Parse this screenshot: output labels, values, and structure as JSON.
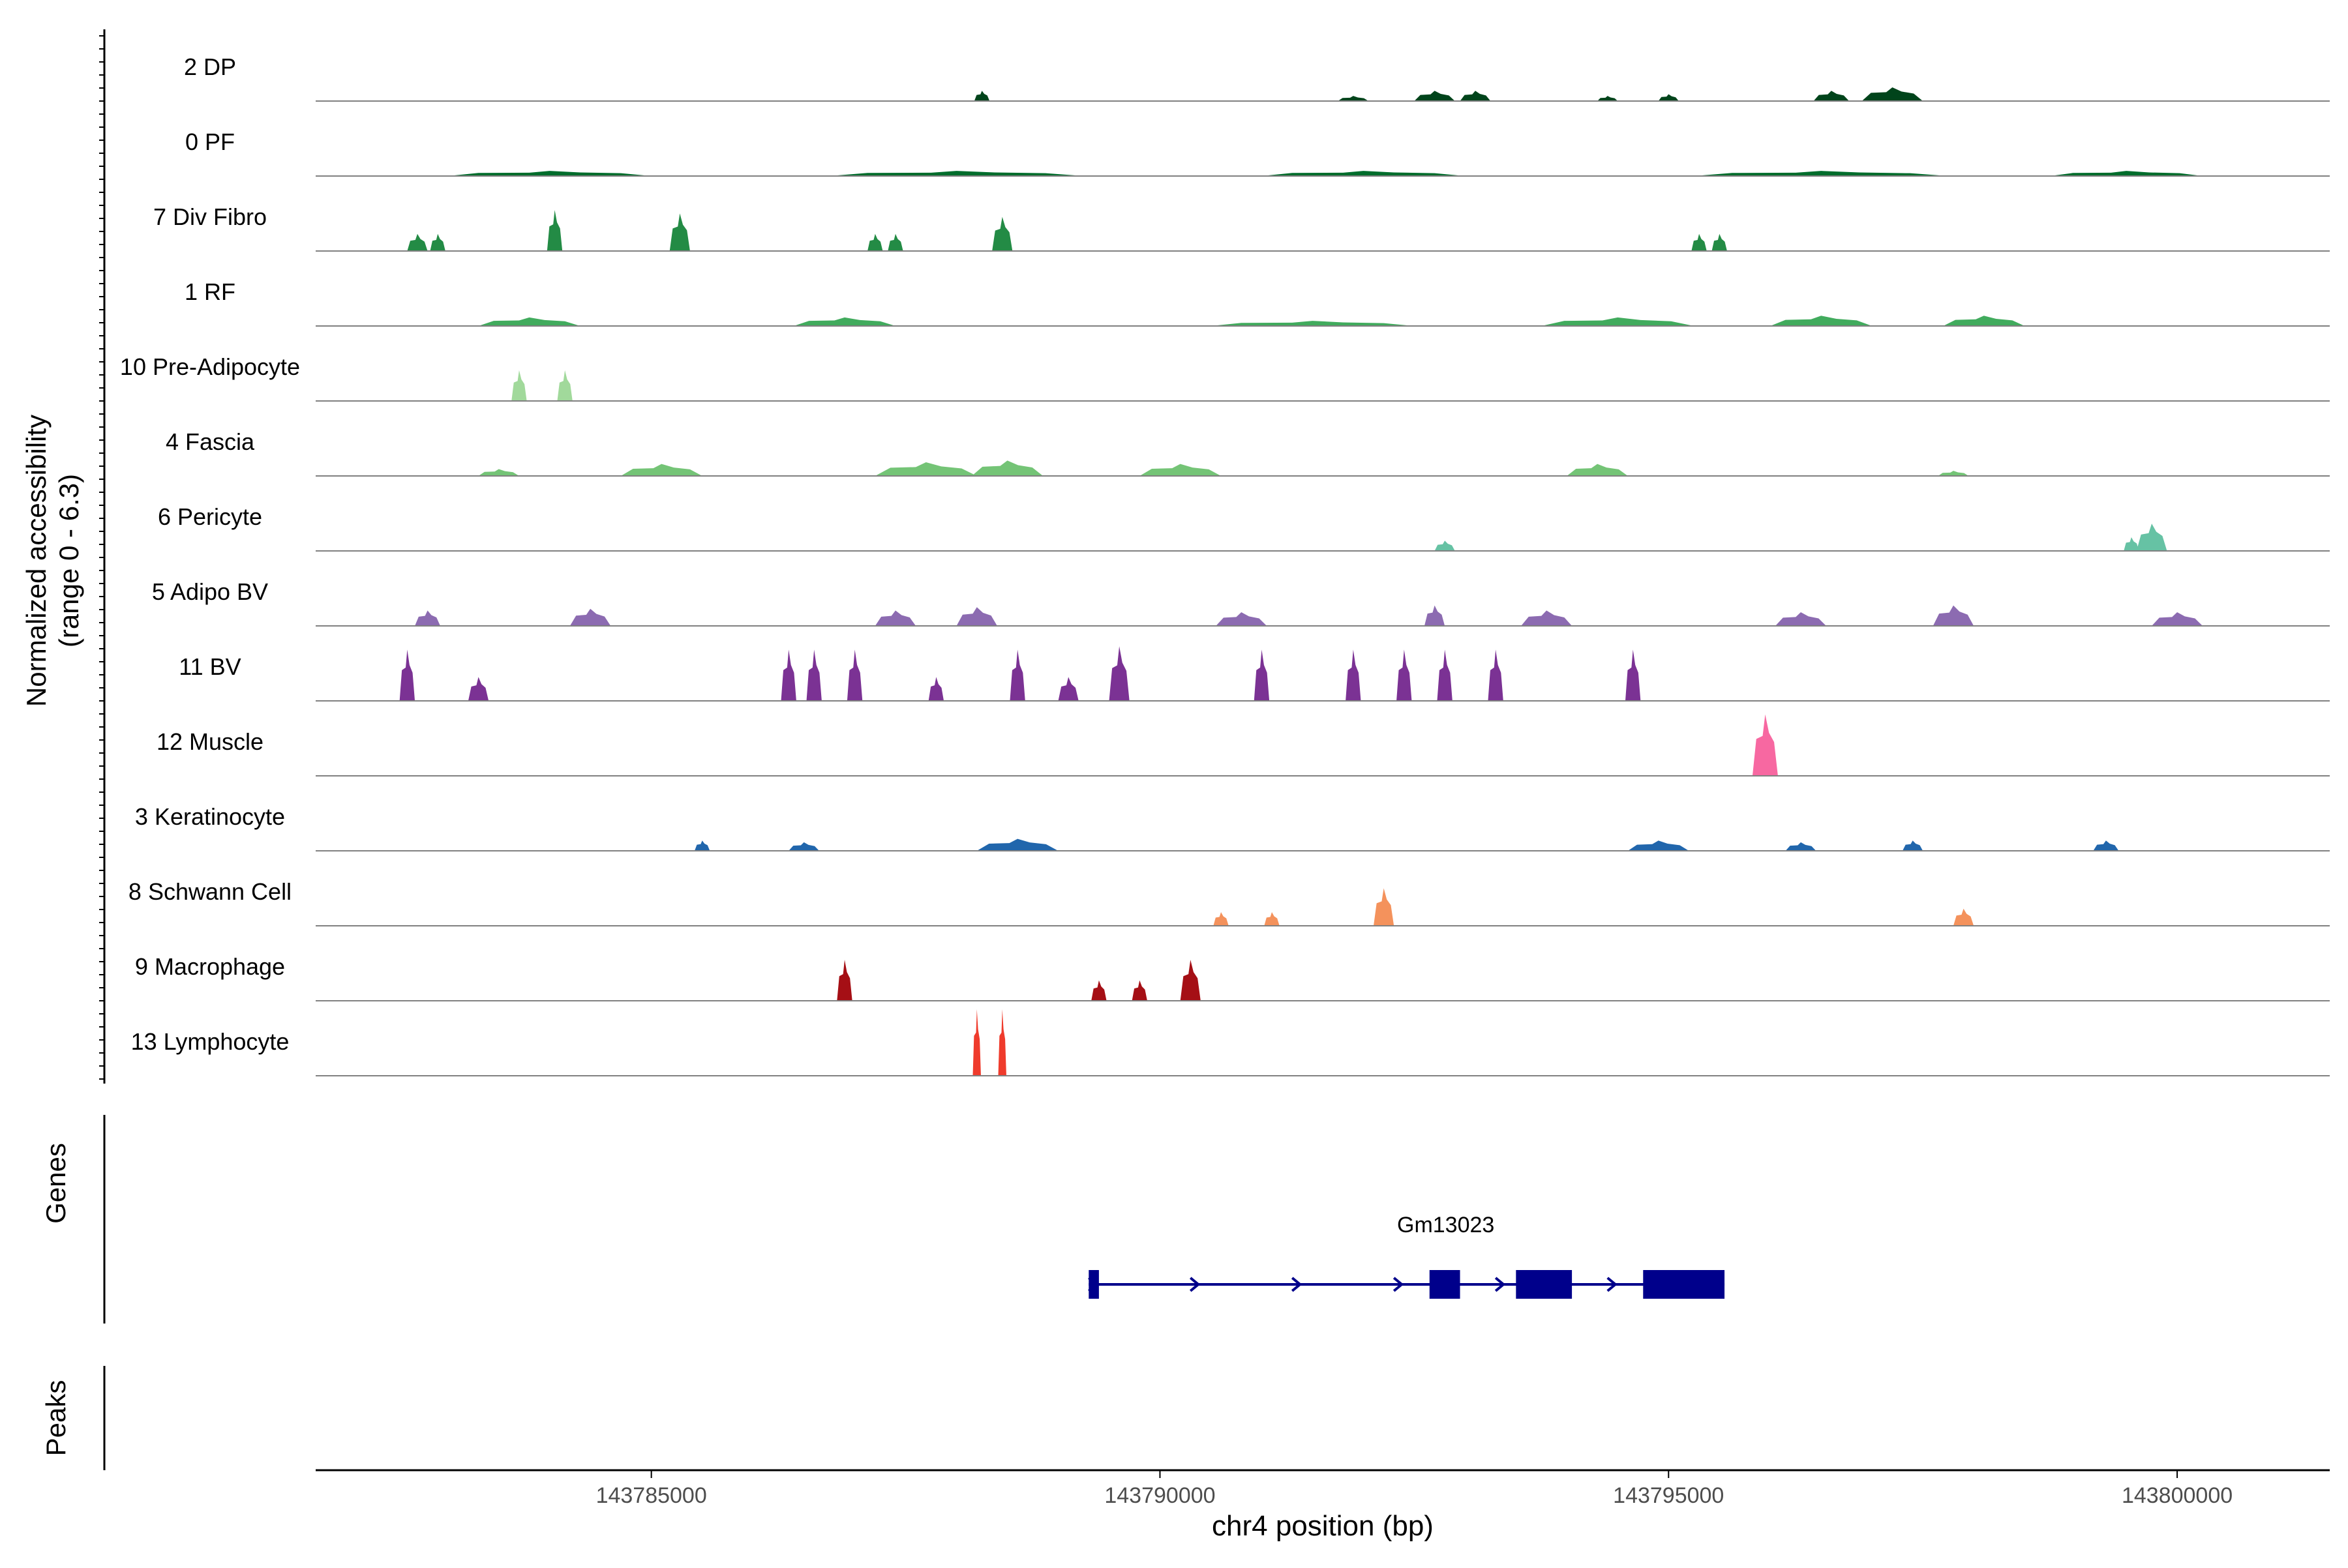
{
  "chart_data": {
    "type": "area",
    "title": "",
    "ylabel_line1": "Normalized accessibility",
    "ylabel_line2": "(range 0 - 6.3)",
    "xlabel": "chr4 position (bp)",
    "xlim": [
      143781700,
      143801500
    ],
    "ylim": [
      0,
      6.3
    ],
    "xticks": [
      143785000,
      143790000,
      143795000,
      143800000
    ],
    "xtick_labels": [
      "143785000",
      "143790000",
      "143795000",
      "143800000"
    ],
    "series": [
      {
        "name": "2 DP",
        "color": "#00441b",
        "peaks": [
          [
            143788250,
            0.3,
            150
          ],
          [
            143791900,
            0.15,
            300
          ],
          [
            143792700,
            0.3,
            400
          ],
          [
            143793100,
            0.3,
            300
          ],
          [
            143794400,
            0.15,
            200
          ],
          [
            143795000,
            0.2,
            200
          ],
          [
            143796600,
            0.3,
            350
          ],
          [
            143797200,
            0.4,
            600
          ]
        ]
      },
      {
        "name": "0 PF",
        "color": "#006d2c",
        "peaks": [
          [
            143784000,
            0.15,
            2000
          ],
          [
            143788000,
            0.15,
            2500
          ],
          [
            143792000,
            0.15,
            2000
          ],
          [
            143796500,
            0.15,
            2500
          ],
          [
            143799500,
            0.15,
            1500
          ]
        ]
      },
      {
        "name": "7 Div Fibro",
        "color": "#238b45",
        "peaks": [
          [
            143782700,
            0.5,
            200
          ],
          [
            143782900,
            0.5,
            150
          ],
          [
            143784050,
            1.2,
            150
          ],
          [
            143785280,
            1.1,
            200
          ],
          [
            143787200,
            0.5,
            150
          ],
          [
            143787400,
            0.5,
            150
          ],
          [
            143788450,
            1.0,
            200
          ],
          [
            143795300,
            0.5,
            150
          ],
          [
            143795500,
            0.5,
            150
          ]
        ]
      },
      {
        "name": "1 RF",
        "color": "#41ab5d",
        "peaks": [
          [
            143783800,
            0.25,
            1000
          ],
          [
            143786900,
            0.25,
            1000
          ],
          [
            143791500,
            0.15,
            2000
          ],
          [
            143794500,
            0.25,
            1500
          ],
          [
            143796500,
            0.3,
            1000
          ],
          [
            143798100,
            0.3,
            800
          ]
        ]
      },
      {
        "name": "10 Pre-Adipocyte",
        "color": "#a1d99b",
        "peaks": [
          [
            143783700,
            0.9,
            150
          ],
          [
            143784150,
            0.9,
            150
          ]
        ]
      },
      {
        "name": "4 Fascia",
        "color": "#74c476",
        "peaks": [
          [
            143783500,
            0.2,
            400
          ],
          [
            143785100,
            0.35,
            800
          ],
          [
            143787700,
            0.4,
            1000
          ],
          [
            143788500,
            0.45,
            700
          ],
          [
            143790200,
            0.35,
            800
          ],
          [
            143794300,
            0.35,
            600
          ],
          [
            143797800,
            0.15,
            300
          ]
        ]
      },
      {
        "name": "6 Pericyte",
        "color": "#66c2a4",
        "peaks": [
          [
            143792800,
            0.3,
            200
          ],
          [
            143799750,
            0.8,
            300
          ],
          [
            143799550,
            0.4,
            150
          ]
        ]
      },
      {
        "name": "5 Adipo BV",
        "color": "#8c6bb1",
        "peaks": [
          [
            143782800,
            0.45,
            250
          ],
          [
            143784400,
            0.5,
            400
          ],
          [
            143787400,
            0.45,
            400
          ],
          [
            143788200,
            0.55,
            400
          ],
          [
            143790800,
            0.4,
            500
          ],
          [
            143792700,
            0.6,
            200
          ],
          [
            143793800,
            0.45,
            500
          ],
          [
            143796300,
            0.4,
            500
          ],
          [
            143797800,
            0.6,
            400
          ],
          [
            143800000,
            0.4,
            500
          ]
        ]
      },
      {
        "name": "11 BV",
        "color": "#7b3294",
        "peaks": [
          [
            143782600,
            1.5,
            150
          ],
          [
            143783300,
            0.7,
            200
          ],
          [
            143786350,
            1.5,
            150
          ],
          [
            143786600,
            1.5,
            150
          ],
          [
            143787000,
            1.5,
            150
          ],
          [
            143787800,
            0.7,
            150
          ],
          [
            143788600,
            1.5,
            150
          ],
          [
            143789100,
            0.7,
            200
          ],
          [
            143789600,
            1.6,
            200
          ],
          [
            143791000,
            1.5,
            150
          ],
          [
            143791900,
            1.5,
            150
          ],
          [
            143792400,
            1.5,
            150
          ],
          [
            143792800,
            1.5,
            150
          ],
          [
            143793300,
            1.5,
            150
          ],
          [
            143794650,
            1.5,
            150
          ]
        ]
      },
      {
        "name": "12 Muscle",
        "color": "#f768a1",
        "peaks": [
          [
            143795950,
            1.8,
            250
          ]
        ]
      },
      {
        "name": "3 Keratinocyte",
        "color": "#2166ac",
        "peaks": [
          [
            143785500,
            0.3,
            150
          ],
          [
            143786500,
            0.25,
            300
          ],
          [
            143788600,
            0.35,
            800
          ],
          [
            143794900,
            0.3,
            600
          ],
          [
            143796300,
            0.25,
            300
          ],
          [
            143797400,
            0.3,
            200
          ],
          [
            143799300,
            0.3,
            250
          ]
        ]
      },
      {
        "name": "8 Schwann Cell",
        "color": "#f4925c",
        "peaks": [
          [
            143790600,
            0.4,
            150
          ],
          [
            143791100,
            0.4,
            150
          ],
          [
            143792200,
            1.1,
            200
          ],
          [
            143797900,
            0.5,
            200
          ]
        ]
      },
      {
        "name": "9 Macrophage",
        "color": "#a50f15",
        "peaks": [
          [
            143786900,
            1.2,
            150
          ],
          [
            143789400,
            0.6,
            150
          ],
          [
            143789800,
            0.6,
            150
          ],
          [
            143790300,
            1.2,
            200
          ]
        ]
      },
      {
        "name": "13 Lymphocyte",
        "color": "#ef3b2c",
        "peaks": [
          [
            143788200,
            2.1,
            80
          ],
          [
            143788450,
            2.1,
            80
          ]
        ]
      }
    ],
    "genes": {
      "label": "Genes",
      "gene_name": "Gm13023",
      "start": 143789300,
      "end": 143795550,
      "strand": "+",
      "color": "#00008b",
      "exons": [
        [
          143789300,
          143789400
        ],
        [
          143792650,
          143792950
        ],
        [
          143793500,
          143794050
        ],
        [
          143794750,
          143795550
        ]
      ],
      "arrows": [
        143789300,
        143790300,
        143791300,
        143792300,
        143793300,
        143794400
      ]
    },
    "peaks_track": {
      "label": "Peaks"
    }
  }
}
